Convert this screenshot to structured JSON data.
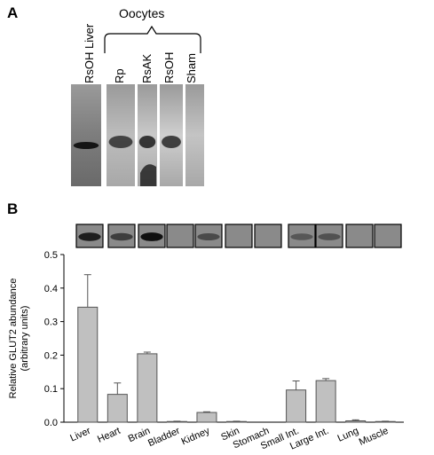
{
  "panel_a": {
    "letter": "A",
    "group_label": "Oocytes",
    "lanes": [
      {
        "label": "RsOH Liver",
        "band": true,
        "intensity": 0.95
      },
      {
        "label": "Rp",
        "band": true,
        "intensity": 0.7
      },
      {
        "label": "RsAK",
        "band": true,
        "intensity": 0.8
      },
      {
        "label": "RsOH",
        "band": true,
        "intensity": 0.75
      },
      {
        "label": "Sham",
        "band": false,
        "intensity": 0.0
      }
    ]
  },
  "panel_b": {
    "letter": "B",
    "blot_strip": [
      {
        "tissue": "Liver",
        "intensity": 0.85
      },
      {
        "tissue": "Heart",
        "intensity": 0.6
      },
      {
        "tissue": "Brain",
        "intensity": 0.95
      },
      {
        "tissue": "Bladder",
        "intensity": 0.05
      },
      {
        "tissue": "Kidney",
        "intensity": 0.5
      },
      {
        "tissue": "Skin",
        "intensity": 0.05
      },
      {
        "tissue": "Stomach",
        "intensity": 0.05
      },
      {
        "tissue": "Small Int.",
        "intensity": 0.4
      },
      {
        "tissue": "Large Int.",
        "intensity": 0.45
      },
      {
        "tissue": "Lung",
        "intensity": 0.05
      },
      {
        "tissue": "Muscle",
        "intensity": 0.05
      }
    ]
  },
  "chart_data": {
    "type": "bar",
    "categories": [
      "Liver",
      "Heart",
      "Brain",
      "Bladder",
      "Kidney",
      "Skin",
      "Stomach",
      "Small Int.",
      "Large Int.",
      "Lung",
      "Muscle"
    ],
    "values": [
      0.343,
      0.083,
      0.204,
      0.002,
      0.029,
      0.002,
      0.0,
      0.096,
      0.124,
      0.004,
      0.002
    ],
    "errors": [
      0.097,
      0.034,
      0.005,
      0.001,
      0.002,
      0.001,
      0.0,
      0.027,
      0.006,
      0.003,
      0.001
    ],
    "ylabel": "Relative GLUT2 abundance\n(arbitrary units)",
    "ylabel_line1": "Relative GLUT2 abundance",
    "ylabel_line2": "(arbitrary units)",
    "ylim": [
      0,
      0.5
    ],
    "yticks": [
      "0.0",
      "0.1",
      "0.2",
      "0.3",
      "0.4",
      "0.5"
    ],
    "grid": false,
    "bar_color": "#c0c0c0",
    "bar_edge_color": "#555555"
  }
}
